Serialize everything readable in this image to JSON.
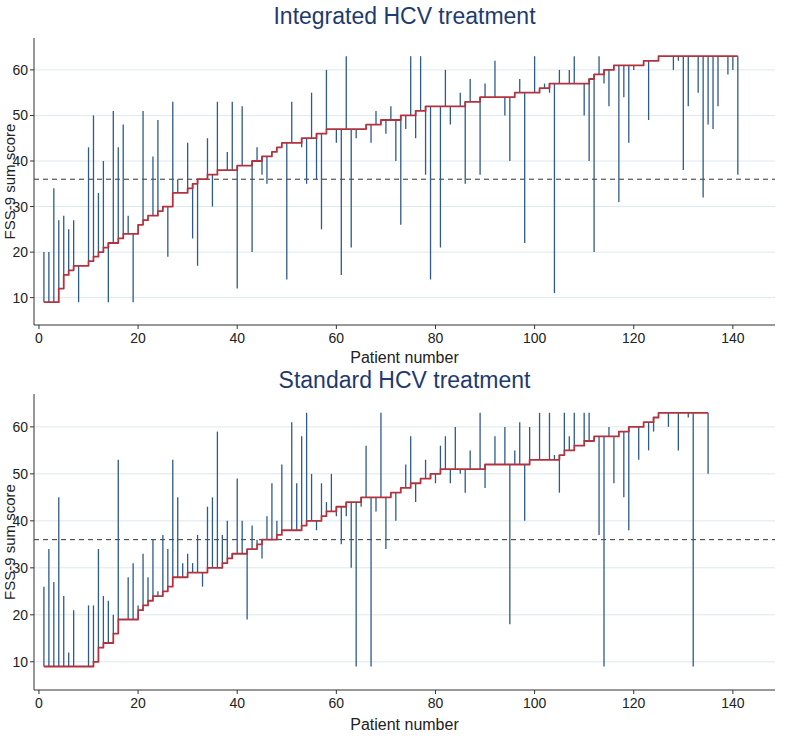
{
  "chart_data": [
    {
      "type": "line",
      "title": "Integrated HCV treatment",
      "x_label": "Patient number",
      "y_label": "FSS-9 sum score",
      "xlim": [
        -1,
        148.5
      ],
      "xticks": [
        0,
        20,
        40,
        60,
        80,
        100,
        120,
        140
      ],
      "ylim": [
        4,
        67
      ],
      "yticks": [
        10,
        20,
        30,
        40,
        50,
        60
      ],
      "grid": true,
      "reference_line": 36,
      "x": [
        1,
        2,
        3,
        4,
        5,
        6,
        7,
        8,
        9,
        10,
        11,
        12,
        13,
        14,
        15,
        16,
        17,
        18,
        19,
        20,
        21,
        22,
        23,
        24,
        25,
        26,
        27,
        28,
        29,
        30,
        31,
        32,
        33,
        34,
        35,
        36,
        37,
        38,
        39,
        40,
        41,
        42,
        43,
        44,
        45,
        46,
        47,
        48,
        49,
        50,
        51,
        52,
        53,
        54,
        55,
        56,
        57,
        58,
        59,
        60,
        61,
        62,
        63,
        64,
        65,
        66,
        67,
        68,
        69,
        70,
        71,
        72,
        73,
        74,
        75,
        76,
        77,
        78,
        79,
        80,
        81,
        82,
        83,
        84,
        85,
        86,
        87,
        88,
        89,
        90,
        91,
        92,
        93,
        94,
        95,
        96,
        97,
        98,
        99,
        100,
        101,
        102,
        103,
        104,
        105,
        106,
        107,
        108,
        109,
        110,
        111,
        112,
        113,
        114,
        115,
        116,
        117,
        118,
        119,
        120,
        121,
        122,
        123,
        124,
        125,
        126,
        127,
        128,
        129,
        130,
        131,
        132,
        133,
        134,
        135,
        136,
        137,
        138,
        139,
        140,
        141
      ],
      "series": [
        {
          "type": "spike",
          "color": "#2d5b8a",
          "values": [
            20,
            20,
            34,
            27,
            28,
            25,
            27,
            9,
            17,
            43,
            50,
            33,
            40,
            9,
            51,
            43,
            48,
            28,
            9,
            26,
            51,
            28,
            41,
            49,
            30,
            19,
            53,
            36,
            33,
            44,
            23,
            17,
            36,
            45,
            30,
            53,
            38,
            42,
            53,
            12,
            52,
            39,
            20,
            43,
            37,
            35,
            42,
            43,
            44,
            14,
            53,
            44,
            43,
            35,
            55,
            36,
            25,
            60,
            47,
            44,
            15,
            63,
            21,
            45,
            47,
            48,
            44,
            51,
            49,
            46,
            52,
            40,
            26,
            47,
            63,
            45,
            63,
            37,
            14,
            52,
            21,
            60,
            48,
            52,
            55,
            35,
            58,
            53,
            37,
            57,
            54,
            62,
            54,
            50,
            40,
            55,
            58,
            22,
            55,
            63,
            56,
            57,
            55,
            11,
            60,
            57,
            60,
            63,
            57,
            50,
            40,
            20,
            63,
            57,
            52,
            61,
            31,
            54,
            44,
            60,
            61,
            62,
            49,
            62,
            63,
            63,
            63,
            60,
            62,
            38,
            52,
            63,
            55,
            32,
            48,
            47,
            52,
            63,
            59,
            60,
            37
          ]
        },
        {
          "type": "line",
          "line_style": "step",
          "color": "#b2333f",
          "values": [
            9,
            9,
            9,
            12,
            15,
            16,
            17,
            17,
            17,
            18,
            19,
            20,
            21,
            22,
            22,
            23,
            24,
            24,
            24,
            26,
            27,
            28,
            28,
            29,
            30,
            30,
            33,
            33,
            33,
            34,
            35,
            36,
            36,
            37,
            37,
            38,
            38,
            38,
            38,
            39,
            39,
            39,
            40,
            40,
            41,
            41,
            42,
            43,
            44,
            44,
            44,
            44,
            45,
            45,
            45,
            46,
            46,
            47,
            47,
            47,
            47,
            47,
            47,
            47,
            47,
            48,
            48,
            48,
            49,
            49,
            49,
            49,
            50,
            50,
            50,
            51,
            51,
            52,
            52,
            52,
            52,
            52,
            52,
            52,
            52,
            53,
            53,
            53,
            54,
            54,
            54,
            54,
            54,
            54,
            54,
            55,
            55,
            55,
            55,
            55,
            56,
            56,
            57,
            57,
            57,
            57,
            57,
            57,
            57,
            57,
            58,
            59,
            59,
            60,
            60,
            61,
            61,
            61,
            61,
            61,
            61,
            62,
            62,
            62,
            63,
            63,
            63,
            63,
            63,
            63,
            63,
            63,
            63,
            63,
            63,
            63,
            63,
            63,
            63,
            63,
            63
          ]
        }
      ]
    },
    {
      "type": "line",
      "title": "Standard HCV treatment",
      "x_label": "Patient number",
      "y_label": "FSS-9 sum score",
      "xlim": [
        -1,
        148.5
      ],
      "xticks": [
        0,
        20,
        40,
        60,
        80,
        100,
        120,
        140
      ],
      "ylim": [
        4,
        67
      ],
      "yticks": [
        10,
        20,
        30,
        40,
        50,
        60
      ],
      "grid": true,
      "reference_line": 36,
      "x": [
        1,
        2,
        3,
        4,
        5,
        6,
        7,
        8,
        9,
        10,
        11,
        12,
        13,
        14,
        15,
        16,
        17,
        18,
        19,
        20,
        21,
        22,
        23,
        24,
        25,
        26,
        27,
        28,
        29,
        30,
        31,
        32,
        33,
        34,
        35,
        36,
        37,
        38,
        39,
        40,
        41,
        42,
        43,
        44,
        45,
        46,
        47,
        48,
        49,
        50,
        51,
        52,
        53,
        54,
        55,
        56,
        57,
        58,
        59,
        60,
        61,
        62,
        63,
        64,
        65,
        66,
        67,
        68,
        69,
        70,
        71,
        72,
        73,
        74,
        75,
        76,
        77,
        78,
        79,
        80,
        81,
        82,
        83,
        84,
        85,
        86,
        87,
        88,
        89,
        90,
        91,
        92,
        93,
        94,
        95,
        96,
        97,
        98,
        99,
        100,
        101,
        102,
        103,
        104,
        105,
        106,
        107,
        108,
        109,
        110,
        111,
        112,
        113,
        114,
        115,
        116,
        117,
        118,
        119,
        120,
        121,
        122,
        123,
        124,
        125,
        126,
        127,
        128,
        129,
        130,
        131,
        132,
        133,
        134,
        135
      ],
      "series": [
        {
          "type": "spike",
          "color": "#2d5b8a",
          "values": [
            26,
            34,
            27,
            45,
            24,
            12,
            21,
            9,
            9,
            22,
            22,
            34,
            24,
            23,
            20,
            53,
            19,
            28,
            31,
            22,
            33,
            28,
            36,
            25,
            37,
            34,
            53,
            45,
            31,
            33,
            31,
            37,
            26,
            43,
            45,
            59,
            37,
            40,
            32,
            49,
            40,
            19,
            39,
            36,
            32,
            41,
            48,
            40,
            52,
            38,
            61,
            48,
            58,
            63,
            50,
            38,
            48,
            44,
            50,
            41,
            35,
            41,
            30,
            9,
            43,
            56,
            9,
            42,
            63,
            34,
            46,
            40,
            47,
            52,
            58,
            44,
            49,
            53,
            49,
            48,
            56,
            58,
            48,
            60,
            50,
            46,
            55,
            51,
            63,
            47,
            52,
            58,
            52,
            60,
            18,
            55,
            61,
            40,
            60,
            53,
            63,
            53,
            63,
            54,
            46,
            63,
            58,
            63,
            56,
            63,
            63,
            58,
            37,
            9,
            60,
            48,
            59,
            45,
            38,
            60,
            53,
            61,
            55,
            59,
            63,
            63,
            60,
            63,
            55,
            63,
            62,
            9,
            63,
            63,
            50
          ]
        },
        {
          "type": "line",
          "line_style": "step",
          "color": "#b2333f",
          "values": [
            9,
            9,
            9,
            9,
            9,
            9,
            9,
            9,
            9,
            9,
            10,
            13,
            14,
            14,
            16,
            19,
            19,
            19,
            19,
            21,
            22,
            23,
            24,
            24,
            25,
            26,
            28,
            28,
            28,
            29,
            29,
            29,
            29,
            30,
            30,
            30,
            31,
            32,
            33,
            33,
            33,
            34,
            34,
            35,
            36,
            36,
            36,
            37,
            38,
            38,
            38,
            38,
            39,
            40,
            40,
            40,
            41,
            42,
            42,
            43,
            43,
            44,
            44,
            44,
            45,
            45,
            45,
            45,
            45,
            45,
            46,
            46,
            47,
            47,
            48,
            48,
            49,
            49,
            50,
            50,
            51,
            51,
            51,
            51,
            51,
            51,
            51,
            51,
            51,
            52,
            52,
            52,
            52,
            52,
            52,
            52,
            52,
            52,
            53,
            53,
            53,
            53,
            53,
            53,
            54,
            55,
            55,
            56,
            56,
            57,
            57,
            58,
            58,
            58,
            58,
            58,
            59,
            59,
            60,
            60,
            60,
            61,
            61,
            62,
            63,
            63,
            63,
            63,
            63,
            63,
            63,
            63,
            63,
            63,
            63
          ]
        }
      ]
    }
  ]
}
